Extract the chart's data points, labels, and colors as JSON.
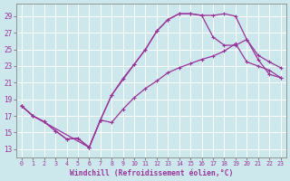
{
  "xlabel": "Windchill (Refroidissement éolien,°C)",
  "background_color": "#cde8ed",
  "line_color": "#993399",
  "xlim": [
    -0.5,
    23.5
  ],
  "ylim": [
    12.0,
    30.5
  ],
  "yticks": [
    13,
    15,
    17,
    19,
    21,
    23,
    25,
    27,
    29
  ],
  "xticks": [
    0,
    1,
    2,
    3,
    4,
    5,
    6,
    7,
    8,
    9,
    10,
    11,
    12,
    13,
    14,
    15,
    16,
    17,
    18,
    19,
    20,
    21,
    22,
    23
  ],
  "curve1_x": [
    0,
    1,
    2,
    3,
    4,
    5,
    6,
    7,
    8,
    10,
    11,
    12,
    13,
    14,
    15,
    16,
    17,
    18,
    19,
    20,
    21,
    22,
    23
  ],
  "curve1_y": [
    18.2,
    17.0,
    16.3,
    15.2,
    14.2,
    14.3,
    13.2,
    16.5,
    19.5,
    23.2,
    25.0,
    27.2,
    28.6,
    29.3,
    29.3,
    29.1,
    29.1,
    29.3,
    29.0,
    26.2,
    23.8,
    22.0,
    21.6
  ],
  "curve2_x": [
    0,
    1,
    2,
    3,
    4,
    5,
    6,
    7,
    8,
    9,
    10,
    11,
    12,
    13,
    14,
    15,
    16,
    17,
    18,
    19,
    20,
    21,
    22,
    23
  ],
  "curve2_y": [
    18.2,
    17.0,
    16.3,
    15.2,
    14.2,
    14.3,
    13.2,
    16.5,
    16.2,
    17.8,
    19.2,
    20.3,
    21.2,
    22.2,
    22.8,
    23.3,
    23.8,
    24.2,
    24.8,
    25.7,
    23.5,
    23.0,
    22.5,
    21.6
  ],
  "curve3_x": [
    0,
    1,
    6,
    7,
    8,
    9,
    10,
    11,
    12,
    13,
    14,
    15,
    16,
    17,
    18,
    19,
    20,
    21,
    22,
    23
  ],
  "curve3_y": [
    18.2,
    17.0,
    13.2,
    16.5,
    19.5,
    21.5,
    23.2,
    25.0,
    27.2,
    28.6,
    29.3,
    29.3,
    29.1,
    26.5,
    25.5,
    25.5,
    26.2,
    24.3,
    23.5,
    22.8
  ]
}
